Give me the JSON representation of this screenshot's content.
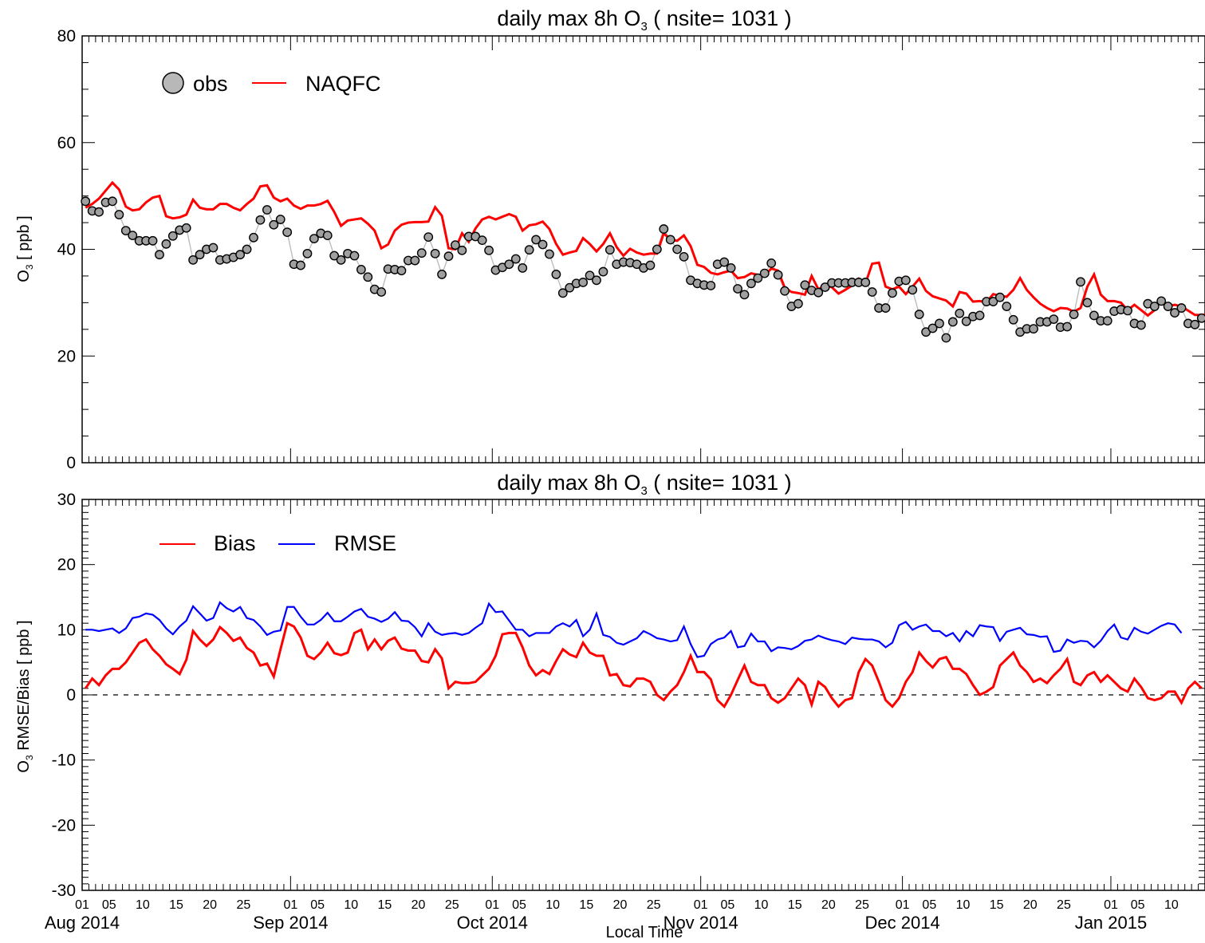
{
  "chart_data": [
    {
      "type": "line",
      "title_main": "daily max 8h O",
      "title_sub": "3",
      "title_rest": " ( nsite= 1031 )",
      "ylabel_main": "O",
      "ylabel_sub": "3",
      "ylabel_rest": " [ ppb ]",
      "ylim": [
        0,
        80
      ],
      "yticks": [
        "0",
        "20",
        "40",
        "60",
        "80"
      ],
      "x_start": "2014-08-01",
      "x_end": "2015-01-14",
      "legend_position": "top-left",
      "series": [
        {
          "name": "obs",
          "color": "#a0a0a0",
          "marker": "circle",
          "values": [
            49.0,
            47.2,
            47.0,
            48.8,
            49.0,
            46.5,
            43.5,
            42.6,
            41.6,
            41.6,
            41.6,
            39.0,
            41.0,
            42.5,
            43.6,
            44.0,
            38.0,
            39.0,
            40.0,
            40.3,
            38.0,
            38.2,
            38.5,
            39.0,
            40.0,
            42.2,
            45.5,
            47.4,
            44.6,
            45.6,
            43.2,
            37.2,
            37.0,
            39.2,
            42.0,
            43.0,
            42.6,
            38.8,
            38.0,
            39.2,
            38.8,
            36.2,
            34.8,
            32.5,
            32.0,
            36.3,
            36.2,
            36.0,
            37.9,
            37.9,
            39.3,
            42.3,
            39.2,
            35.3,
            38.7,
            40.8,
            39.8,
            42.4,
            42.4,
            41.7,
            39.8,
            36.1,
            36.6,
            37.2,
            38.2,
            36.5,
            39.9,
            41.8,
            40.9,
            39.1,
            35.3,
            31.8,
            32.8,
            33.6,
            33.8,
            35.1,
            34.2,
            35.8,
            39.9,
            37.2,
            37.6,
            37.5,
            37.2,
            36.5,
            37.0,
            40.0,
            43.8,
            41.8,
            40.0,
            38.6,
            34.2,
            33.6,
            33.3,
            33.2,
            37.2,
            37.6,
            36.5,
            32.6,
            31.5,
            33.6,
            34.6,
            35.5,
            37.4,
            35.2,
            32.2,
            29.3,
            29.8,
            33.3,
            32.3,
            31.9,
            32.9,
            33.7,
            33.7,
            33.7,
            33.8,
            33.8,
            33.8,
            32.0,
            29.0,
            29.0,
            31.8,
            34.0,
            34.2,
            32.4,
            27.8,
            24.5,
            25.2,
            26.1,
            23.4,
            26.4,
            28.0,
            26.5,
            27.4,
            27.6,
            30.2,
            30.2,
            31.0,
            29.3,
            26.8,
            24.5,
            25.1,
            25.1,
            26.4,
            26.4,
            26.9,
            25.4,
            25.5,
            27.8,
            33.9,
            30.0,
            27.6,
            26.6,
            26.6,
            28.4,
            28.7,
            28.5,
            26.1,
            25.8,
            29.8,
            29.3,
            30.3,
            29.3,
            28.1,
            29.0,
            26.1,
            25.9,
            27.1
          ]
        },
        {
          "name": "NAQFC",
          "color": "#ff0000",
          "values": [
            47.8,
            48.5,
            49.5,
            51.0,
            52.5,
            51.2,
            48.0,
            47.3,
            47.5,
            48.8,
            49.7,
            50.0,
            46.2,
            45.8,
            46.0,
            46.5,
            49.3,
            47.8,
            47.5,
            47.5,
            48.5,
            48.5,
            47.8,
            47.3,
            48.5,
            49.5,
            51.8,
            52.0,
            49.7,
            49.0,
            49.5,
            48.2,
            47.6,
            48.2,
            48.2,
            48.5,
            49.1,
            47.0,
            44.4,
            45.4,
            45.6,
            45.8,
            44.8,
            43.5,
            40.2,
            40.9,
            43.5,
            44.6,
            45.0,
            45.1,
            45.1,
            45.2,
            47.9,
            46.3,
            40.2,
            40.0,
            43.0,
            41.4,
            43.9,
            45.6,
            46.1,
            45.6,
            46.1,
            46.6,
            46.1,
            43.5,
            44.5,
            44.7,
            45.2,
            43.8,
            41.0,
            39.0,
            39.4,
            39.7,
            42.1,
            41.0,
            39.6,
            41.0,
            43.0,
            40.4,
            38.8,
            40.1,
            39.4,
            39.0,
            39.2,
            39.2,
            43.0,
            41.8,
            41.6,
            42.6,
            40.6,
            37.1,
            36.7,
            35.6,
            35.3,
            35.7,
            36.0,
            34.6,
            34.8,
            35.5,
            35.2,
            35.1,
            36.4,
            36.0,
            32.8,
            32.0,
            31.8,
            31.5,
            35.0,
            32.5,
            33.3,
            32.9,
            31.7,
            32.4,
            33.2,
            34.5,
            33.6,
            37.3,
            37.5,
            33.0,
            32.5,
            33.0,
            31.6,
            33.0,
            34.5,
            32.2,
            31.2,
            30.8,
            30.4,
            29.3,
            32.0,
            31.7,
            30.2,
            30.3,
            30.1,
            31.6,
            31.3,
            31.1,
            32.4,
            34.6,
            32.4,
            31.0,
            29.8,
            29.0,
            28.4,
            29.0,
            28.9,
            28.3,
            29.0,
            33.0,
            35.3,
            31.5,
            30.3,
            30.3,
            30.0,
            28.6,
            29.6,
            28.6,
            27.6,
            28.6,
            30.6,
            29.3,
            29.6,
            29.3,
            28.5,
            27.7,
            27.7,
            27.7
          ]
        }
      ]
    },
    {
      "type": "line",
      "title_main": "daily max 8h O",
      "title_sub": "3",
      "title_rest": " ( nsite= 1031 )",
      "ylabel_main": "O",
      "ylabel_sub": "3",
      "ylabel_rest": " RMSE/Bias [ ppb ]",
      "xlabel": "Local Time",
      "ylim": [
        -30,
        30
      ],
      "yticks": [
        "-30",
        "-20",
        "-10",
        "0",
        "10",
        "20",
        "30"
      ],
      "x_start": "2014-08-01",
      "x_end": "2015-01-14",
      "zero_line": "dashed",
      "legend_position": "top-left",
      "day_tick_labels": [
        [
          "01",
          "05",
          "10",
          "15",
          "20",
          "25"
        ],
        [
          "01",
          "05",
          "10",
          "15",
          "20",
          "25"
        ],
        [
          "01",
          "05",
          "10",
          "15",
          "20",
          "25"
        ],
        [
          "01",
          "05",
          "10",
          "15",
          "20",
          "25"
        ],
        [
          "01",
          "05",
          "10",
          "15",
          "20",
          "25"
        ],
        [
          "01",
          "05",
          "10"
        ]
      ],
      "month_labels": [
        "Aug 2014",
        "Sep 2014",
        "Oct 2014",
        "Nov 2014",
        "Dec 2014",
        "Jan 2015"
      ],
      "series": [
        {
          "name": "Bias",
          "color": "#ff0000",
          "values": [
            1.0,
            2.5,
            1.5,
            3.0,
            4.0,
            4.0,
            5.0,
            6.5,
            8.0,
            8.5,
            7.0,
            6.0,
            4.7,
            4.0,
            3.2,
            5.4,
            9.8,
            8.5,
            7.5,
            8.5,
            10.4,
            9.5,
            8.3,
            8.8,
            7.2,
            6.5,
            4.5,
            4.8,
            2.8,
            7.0,
            11.0,
            10.5,
            8.8,
            6.0,
            5.5,
            6.5,
            8.0,
            6.4,
            6.1,
            6.5,
            9.5,
            10.0,
            7.0,
            8.5,
            7.0,
            8.3,
            8.8,
            7.1,
            6.8,
            6.8,
            5.2,
            5.0,
            7.0,
            5.6,
            1.0,
            2.0,
            1.8,
            1.8,
            2.0,
            3.0,
            4.0,
            6.0,
            9.3,
            9.5,
            9.5,
            7.3,
            4.5,
            3.0,
            3.8,
            3.2,
            5.2,
            7.0,
            6.2,
            5.8,
            8.0,
            6.5,
            6.0,
            6.0,
            3.0,
            3.2,
            1.5,
            1.3,
            2.5,
            2.5,
            2.0,
            0.0,
            -0.8,
            0.5,
            1.5,
            3.5,
            6.0,
            3.5,
            3.5,
            2.4,
            -0.8,
            -1.8,
            0.0,
            2.3,
            4.5,
            2.0,
            1.5,
            1.5,
            -0.5,
            -1.2,
            -0.5,
            1.0,
            2.5,
            1.5,
            -1.5,
            2.0,
            1.2,
            -0.5,
            -1.8,
            -0.8,
            -0.5,
            3.5,
            5.5,
            4.5,
            2.0,
            -0.8,
            -1.8,
            -0.5,
            2.0,
            3.5,
            6.5,
            5.2,
            4.2,
            5.5,
            5.8,
            4.0,
            4.0,
            3.2,
            1.5,
            0.0,
            0.5,
            1.2,
            4.5,
            5.5,
            6.5,
            4.5,
            3.5,
            2.0,
            2.5,
            1.8,
            3.0,
            4.0,
            5.5,
            2.0,
            1.5,
            3.0,
            3.5,
            2.0,
            3.0,
            2.0,
            1.0,
            0.5,
            2.5,
            1.2,
            -0.5,
            -0.8,
            -0.5,
            0.5,
            0.5,
            -1.2,
            1.0,
            2.0,
            1.0
          ]
        },
        {
          "name": "RMSE",
          "color": "#0000ff",
          "values": [
            10.0,
            10.0,
            9.8,
            10.0,
            10.2,
            9.5,
            10.2,
            11.8,
            12.0,
            12.5,
            12.3,
            11.5,
            10.2,
            9.3,
            10.5,
            11.4,
            13.6,
            12.5,
            11.4,
            11.8,
            14.2,
            13.3,
            12.8,
            13.5,
            11.8,
            11.5,
            10.5,
            9.2,
            9.7,
            9.9,
            13.5,
            13.5,
            12.0,
            10.8,
            10.8,
            11.5,
            12.6,
            11.3,
            11.3,
            12.0,
            12.8,
            13.2,
            12.0,
            11.7,
            11.2,
            11.7,
            12.7,
            11.4,
            11.3,
            10.4,
            9.0,
            11.0,
            9.7,
            9.2,
            9.4,
            9.5,
            9.2,
            9.5,
            10.3,
            11.0,
            14.0,
            12.7,
            12.8,
            11.4,
            10.0,
            10.0,
            9.0,
            9.5,
            9.5,
            9.5,
            10.5,
            11.0,
            10.5,
            11.5,
            9.0,
            10.0,
            12.5,
            9.2,
            8.9,
            8.0,
            7.7,
            8.2,
            8.7,
            9.8,
            9.3,
            8.7,
            8.5,
            8.2,
            8.4,
            10.5,
            7.8,
            5.8,
            6.0,
            7.8,
            8.5,
            8.8,
            9.8,
            7.3,
            7.5,
            9.4,
            8.2,
            8.2,
            6.7,
            7.3,
            7.2,
            7.0,
            7.5,
            8.3,
            8.5,
            9.1,
            8.7,
            8.4,
            8.2,
            7.8,
            8.8,
            8.6,
            8.5,
            8.5,
            8.2,
            7.3,
            8.0,
            10.7,
            11.2,
            10.0,
            10.5,
            10.8,
            9.8,
            9.8,
            9.0,
            9.5,
            8.2,
            9.8,
            9.0,
            10.7,
            10.5,
            10.4,
            8.3,
            9.7,
            10.0,
            10.3,
            9.3,
            9.2,
            8.9,
            9.0,
            6.6,
            6.8,
            8.5,
            8.0,
            8.3,
            8.2,
            7.3,
            8.3,
            9.8,
            10.8,
            8.8,
            8.5,
            10.3,
            9.7,
            9.4,
            10.0,
            10.6,
            11.0,
            10.8,
            9.5
          ]
        }
      ]
    }
  ]
}
